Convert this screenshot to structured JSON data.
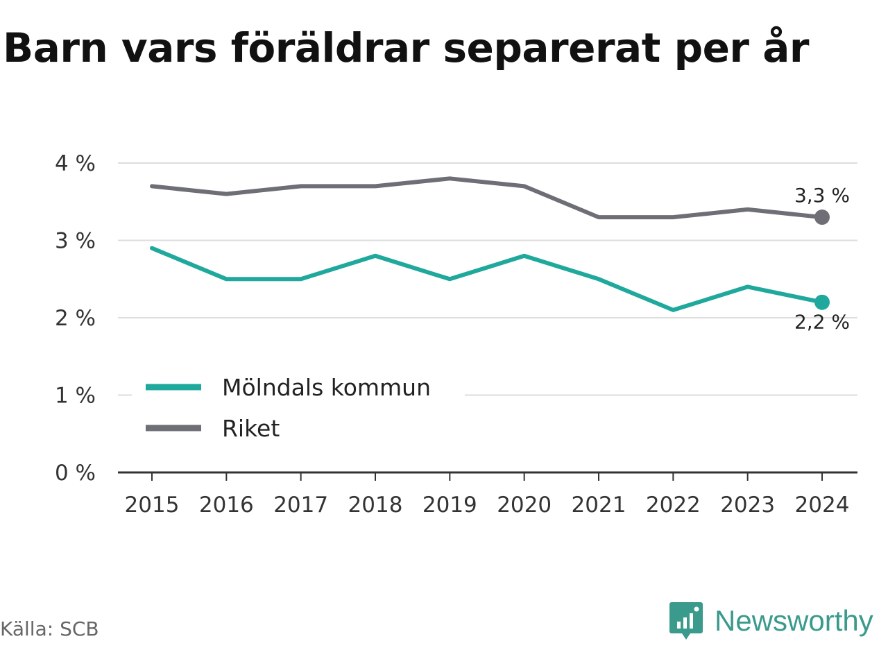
{
  "chart_data": {
    "type": "line",
    "title": "Barn vars föräldrar separerat per år",
    "xlabel": "",
    "ylabel": "",
    "x": [
      "2015",
      "2016",
      "2017",
      "2018",
      "2019",
      "2020",
      "2021",
      "2022",
      "2023",
      "2024"
    ],
    "y_ticks": [
      "0 %",
      "1 %",
      "2 %",
      "3 %",
      "4 %"
    ],
    "ylim": [
      0,
      4
    ],
    "grid": true,
    "legend_position": "lower-left",
    "series": [
      {
        "name": "Mölndals kommun",
        "color": "#1fa89c",
        "values": [
          2.9,
          2.5,
          2.5,
          2.8,
          2.5,
          2.8,
          2.5,
          2.1,
          2.4,
          2.2
        ],
        "end_label": "2,2 %"
      },
      {
        "name": "Riket",
        "color": "#6e6e76",
        "values": [
          3.7,
          3.6,
          3.7,
          3.7,
          3.8,
          3.7,
          3.3,
          3.3,
          3.4,
          3.3
        ],
        "end_label": "3,3 %"
      }
    ]
  },
  "source": "Källa: SCB",
  "brand": {
    "name": "Newsworthy",
    "icon": "chart-bubble-icon",
    "color": "#3a9a8c"
  }
}
